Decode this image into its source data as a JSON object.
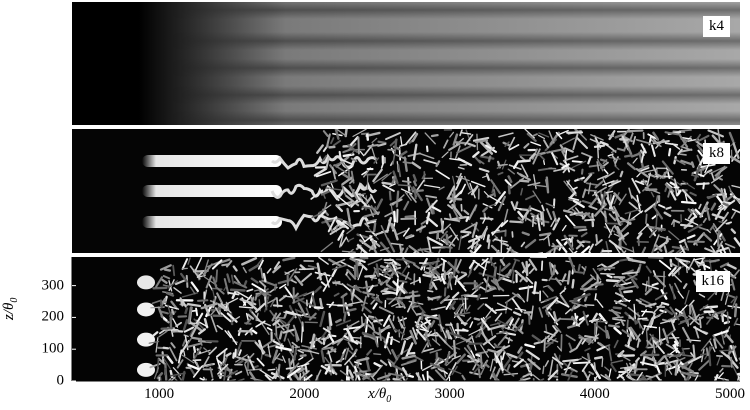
{
  "panels": [
    {
      "label": "k4",
      "style": "smooth"
    },
    {
      "label": "k8",
      "style": "transition"
    },
    {
      "label": "k16",
      "style": "turbulent"
    }
  ],
  "chart_data": {
    "type": "heatmap",
    "description_type": "flow visualization image panels",
    "panels": [
      "k4",
      "k8",
      "k16"
    ],
    "xlabel": "x/θ0",
    "ylabel": "z/θ0",
    "x_ticks": [
      1000,
      2000,
      3000,
      4000,
      5000
    ],
    "y_ticks": [
      0,
      100,
      200,
      300
    ],
    "x_tick_labels": [
      "1000",
      "2000",
      "3000",
      "4000",
      "5000"
    ],
    "y_tick_labels": [
      "0",
      "100",
      "200",
      "300"
    ],
    "xlim": [
      400,
      5000
    ],
    "ylim": [
      0,
      390
    ],
    "streak_z": [
      35,
      130,
      225
    ]
  },
  "axes": {
    "xlabel_main": "x/θ",
    "xlabel_sub": "0",
    "ylabel_main": "z/θ",
    "ylabel_sub": "0"
  }
}
